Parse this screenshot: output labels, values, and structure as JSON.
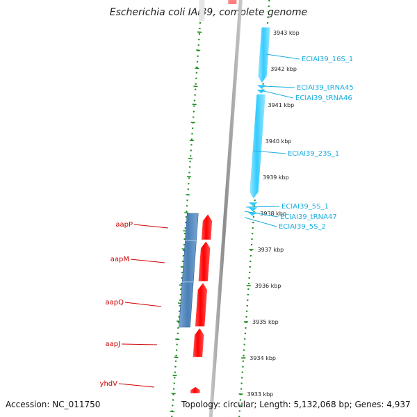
{
  "title": "Escherichia coli IAI39, complete genome",
  "footer": {
    "accession": "Accession: NC_011750",
    "stats": "Topology: circular; Length: 5,132,068 bp; Genes: 4,937"
  },
  "colors": {
    "backbone": "#8c8c8c",
    "forward_gene": "#ff0000",
    "reverse_gene": "#4a7fb5",
    "rna": "#33ccff",
    "ruler": "#1a8a1a",
    "label_red": "#cc0000",
    "label_cyan": "#1aaee0"
  },
  "kbp_marks": [
    {
      "label": "3943 kbp",
      "pos": 3943
    },
    {
      "label": "3942 kbp",
      "pos": 3942
    },
    {
      "label": "3941 kbp",
      "pos": 3941
    },
    {
      "label": "3940 kbp",
      "pos": 3940
    },
    {
      "label": "3939 kbp",
      "pos": 3939
    },
    {
      "label": "3938 kbp",
      "pos": 3938
    },
    {
      "label": "3937 kbp",
      "pos": 3937
    },
    {
      "label": "3936 kbp",
      "pos": 3936
    },
    {
      "label": "3935 kbp",
      "pos": 3935
    },
    {
      "label": "3934 kbp",
      "pos": 3934
    },
    {
      "label": "3933 kbp",
      "pos": 3933
    }
  ],
  "features": [
    {
      "name": "ECIAI39_16S_1",
      "type": "rRNA",
      "strand": "reverse",
      "start": 3941.6,
      "end": 3943.15
    },
    {
      "name": "ECIAI39_tRNA45",
      "type": "tRNA",
      "strand": "reverse",
      "start": 3941.46,
      "end": 3941.54
    },
    {
      "name": "ECIAI39_tRNA46",
      "type": "tRNA",
      "strand": "reverse",
      "start": 3941.33,
      "end": 3941.41
    },
    {
      "name": "ECIAI39_23S_1",
      "type": "rRNA",
      "strand": "reverse",
      "start": 3938.4,
      "end": 3941.3
    },
    {
      "name": "ECIAI39_5S_1",
      "type": "rRNA",
      "strand": "reverse",
      "start": 3938.2,
      "end": 3938.3
    },
    {
      "name": "ECIAI39_tRNA47",
      "type": "tRNA",
      "strand": "reverse",
      "start": 3938.06,
      "end": 3938.16
    },
    {
      "name": "ECIAI39_5S_2",
      "type": "rRNA",
      "strand": "reverse",
      "start": 3937.93,
      "end": 3938.03
    },
    {
      "name": "aapP",
      "type": "CDS",
      "strand": "forward",
      "start": 3937.25,
      "end": 3938.0
    },
    {
      "name": "aapM",
      "type": "CDS",
      "strand": "forward",
      "start": 3936.1,
      "end": 3937.25
    },
    {
      "name": "aapQ",
      "type": "CDS",
      "strand": "forward",
      "start": 3934.85,
      "end": 3936.1
    },
    {
      "name": "aapJ",
      "type": "CDS",
      "strand": "forward",
      "start": 3934.0,
      "end": 3934.85
    },
    {
      "name": "yhdV",
      "type": "CDS",
      "strand": "forward",
      "start": 3933.0,
      "end": 3933.22
    }
  ],
  "reverse_block": {
    "type": "CDS",
    "strand": "reverse",
    "start": 3934.85,
    "end": 3938.0
  }
}
